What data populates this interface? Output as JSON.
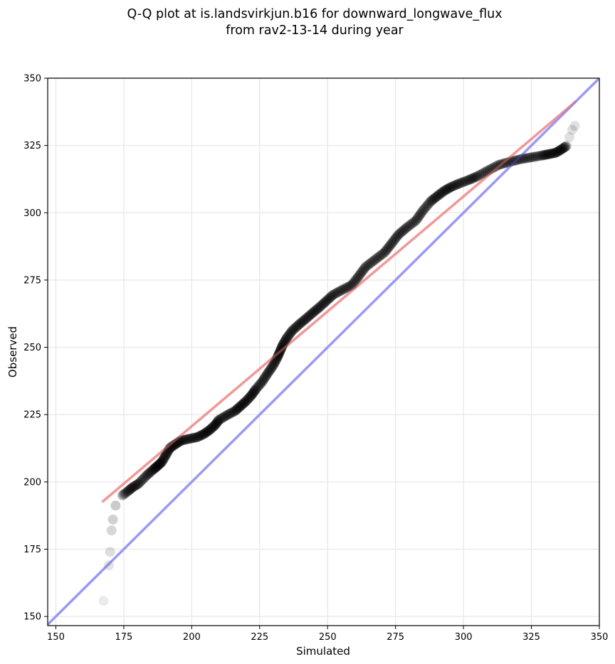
{
  "chart_data": {
    "type": "scatter",
    "title": [
      "Q-Q plot at is.landsvirkjun.b16 for downward_longwave_flux",
      "from rav2-13-14 during year"
    ],
    "xlabel": "Simulated",
    "ylabel": "Observed",
    "xlim": [
      147,
      350
    ],
    "ylim": [
      146.6,
      350
    ],
    "xticks": [
      150,
      175,
      200,
      225,
      250,
      275,
      300,
      325,
      350
    ],
    "yticks": [
      150,
      175,
      200,
      225,
      250,
      275,
      300,
      325,
      350
    ],
    "grid": true,
    "colors": {
      "points": "#000000",
      "faint_points": "#d3d3d3",
      "fit_line": "#f4a0a0",
      "identity_line": "#a8a8f8",
      "grid": "#ebebeb"
    },
    "series": [
      {
        "name": "quantiles",
        "x": [
          167.5,
          169.5,
          170,
          170.5,
          171,
          172,
          174.5,
          176.5,
          178,
          180.5,
          183.5,
          186,
          187.5,
          189,
          190.5,
          192,
          194,
          196,
          199,
          202,
          204.5,
          206.5,
          208.5,
          210,
          213,
          216,
          218,
          220,
          222,
          223.5,
          226,
          228,
          230,
          231.5,
          232.5,
          233.5,
          235,
          237,
          239.5,
          242,
          244.5,
          247,
          249.5,
          252,
          255.5,
          259,
          261.5,
          264,
          267.5,
          271,
          273.5,
          276,
          279,
          282.5,
          285,
          288,
          290.5,
          293,
          295.5,
          298.5,
          302,
          305,
          309,
          313,
          317,
          321,
          325,
          329,
          331.5,
          334,
          336,
          338,
          339,
          340,
          341
        ],
        "y": [
          155.8,
          169,
          174,
          182,
          186,
          191.2,
          195,
          196.5,
          197.8,
          199.4,
          202.5,
          204.7,
          206,
          207.4,
          210,
          212.6,
          214,
          215.3,
          216,
          216.6,
          217.8,
          219.2,
          221,
          223,
          224.8,
          226.4,
          228.2,
          230,
          232.2,
          234.3,
          237.3,
          240.4,
          243.3,
          246.2,
          248.5,
          250.9,
          253.5,
          256.2,
          258.5,
          260.6,
          262.8,
          264.9,
          267.2,
          269.5,
          271.4,
          273.2,
          276.5,
          279.9,
          282.6,
          285.3,
          288.5,
          291.8,
          294.4,
          297.1,
          300.7,
          304.3,
          306.3,
          308.2,
          309.6,
          310.9,
          312.2,
          313.5,
          315.7,
          317.8,
          318.9,
          319.9,
          320.6,
          321.3,
          321.8,
          322.3,
          323.5,
          324.9,
          328.1,
          330.8,
          332.3
        ]
      }
    ],
    "fit_line": {
      "x": [
        167,
        341.5
      ],
      "y": [
        192.5,
        341.5
      ]
    },
    "identity_line": {
      "x": [
        147,
        350
      ],
      "y": [
        147,
        350
      ]
    }
  }
}
